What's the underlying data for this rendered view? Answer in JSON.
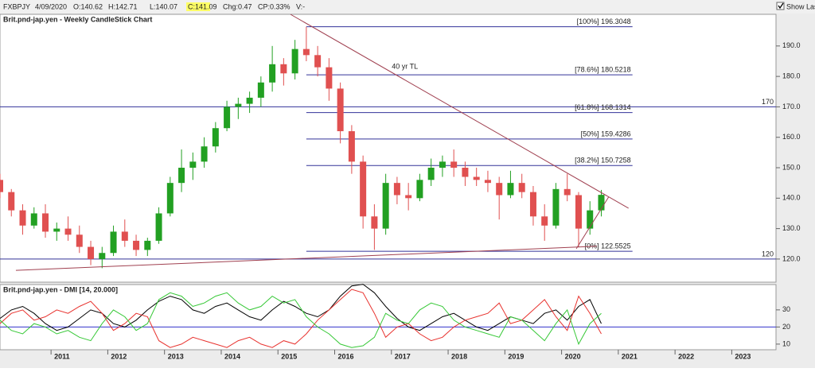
{
  "toolbar": {
    "symbol": "FXBPJY",
    "date": "4/09/2020",
    "open": "O:140.62",
    "high": "H:142.71",
    "low": "L:140.07",
    "close": "C:141.09",
    "change": "Chg:0.47",
    "change_pct": "CP:0.33%",
    "volume": "V:-",
    "show_last": "Show Last"
  },
  "chart_data": [
    {
      "type": "candlestick",
      "title": "Brit.pnd-jap.yen - Weekly CandleStick Chart",
      "x": [
        2010.1,
        2010.3,
        2010.5,
        2010.7,
        2010.9,
        2011.1,
        2011.3,
        2011.5,
        2011.7,
        2011.9,
        2012.1,
        2012.3,
        2012.5,
        2012.7,
        2012.9,
        2013.1,
        2013.3,
        2013.5,
        2013.7,
        2013.9,
        2014.1,
        2014.3,
        2014.5,
        2014.7,
        2014.9,
        2015.1,
        2015.3,
        2015.5,
        2015.7,
        2015.9,
        2016.1,
        2016.3,
        2016.5,
        2016.7,
        2016.9,
        2017.1,
        2017.3,
        2017.5,
        2017.7,
        2017.9,
        2018.1,
        2018.3,
        2018.5,
        2018.7,
        2018.9,
        2019.1,
        2019.3,
        2019.5,
        2019.7,
        2019.9,
        2020.1,
        2020.3,
        2020.5,
        2020.7
      ],
      "open": [
        146,
        142,
        136,
        131,
        135,
        129,
        130,
        128,
        124,
        120,
        122,
        129,
        126,
        123,
        126,
        135,
        145,
        150,
        152,
        157,
        163,
        170,
        171,
        173,
        178,
        184,
        181,
        189,
        187,
        183,
        176,
        162,
        152,
        134,
        130,
        145,
        141,
        140,
        146,
        150,
        152,
        150,
        147,
        146,
        145,
        141,
        145,
        142,
        134,
        131,
        143,
        141,
        130,
        136
      ],
      "high": [
        148,
        143,
        138,
        137,
        138,
        132,
        134,
        131,
        126,
        124,
        131,
        133,
        128,
        127,
        137,
        147,
        156,
        155,
        160,
        165,
        172,
        173,
        175,
        180,
        190,
        186,
        192,
        196.3,
        190,
        186,
        178,
        164,
        154,
        138,
        148,
        147,
        145,
        148,
        153,
        154,
        156,
        152,
        150,
        149,
        147,
        149,
        148,
        144,
        138,
        145,
        148,
        142,
        139,
        142.71
      ],
      "low": [
        140,
        134,
        128,
        130,
        127,
        126,
        126,
        122,
        118,
        117,
        121,
        124,
        121,
        121,
        125,
        134,
        142,
        146,
        150,
        155,
        162,
        166,
        168,
        170,
        175,
        177,
        179,
        185,
        180,
        172,
        158,
        148,
        130,
        123,
        128,
        138,
        136,
        139,
        144,
        147,
        147,
        144,
        144,
        142,
        133,
        140,
        140,
        131,
        126,
        130,
        139,
        124,
        128,
        134
      ],
      "close": [
        142,
        136,
        131,
        135,
        129,
        130,
        128,
        124,
        120,
        122,
        129,
        126,
        123,
        126,
        135,
        145,
        150,
        152,
        157,
        163,
        170,
        171,
        173,
        178,
        184,
        181,
        189,
        187,
        183,
        176,
        162,
        152,
        134,
        130,
        145,
        141,
        140,
        146,
        150,
        152,
        150,
        147,
        146,
        145,
        141,
        145,
        142,
        134,
        131,
        143,
        141,
        130,
        136,
        141.09
      ],
      "up_color": "#22a022",
      "down_color": "#e05050",
      "xlim": [
        2010.1,
        2023.78
      ],
      "ylim": [
        112.4,
        200.4
      ],
      "yticks": [
        {
          "value": 120,
          "label": "120.0"
        },
        {
          "value": 130,
          "label": "130.0"
        },
        {
          "value": 140,
          "label": "140.0"
        },
        {
          "value": 150,
          "label": "150.0"
        },
        {
          "value": 160,
          "label": "160.0"
        },
        {
          "value": 170,
          "label": "170.0"
        },
        {
          "value": 180,
          "label": "180.0"
        },
        {
          "value": 190,
          "label": "190.0"
        }
      ],
      "hlines": [
        170,
        120
      ],
      "hline_color": "#333399",
      "fib_levels": [
        {
          "value": 196.3048,
          "label": "[100%] 196.3048"
        },
        {
          "value": 180.5218,
          "label": "[78.6%] 180.5218"
        },
        {
          "value": 168.1314,
          "label": "[61.8%] 168.1314"
        },
        {
          "value": 159.4286,
          "label": "[50%] 159.4286"
        },
        {
          "value": 150.7258,
          "label": "[38.2%] 150.7258"
        },
        {
          "value": 122.5525,
          "label": "[0%] 122.5525"
        }
      ],
      "fib_x": [
        2015.5,
        2021.25
      ],
      "trendlines": [
        {
          "label": "40 yr TL",
          "x": [
            2015.22,
            2021.18
          ],
          "y": [
            200.4,
            136.7
          ]
        },
        {
          "x": [
            2010.38,
            2020.62
          ],
          "y": [
            116.3,
            124.2
          ]
        },
        {
          "x": [
            2020.26,
            2020.83
          ],
          "y": [
            123.4,
            140.4
          ]
        }
      ],
      "trend_color": "#a04050"
    },
    {
      "type": "line",
      "title": "Brit.pnd-jap.yen - DMI [14, 20.000]",
      "x": [
        2010.1,
        2010.3,
        2010.5,
        2010.7,
        2010.9,
        2011.1,
        2011.3,
        2011.5,
        2011.7,
        2011.9,
        2012.1,
        2012.3,
        2012.5,
        2012.7,
        2012.9,
        2013.1,
        2013.3,
        2013.5,
        2013.7,
        2013.9,
        2014.1,
        2014.3,
        2014.5,
        2014.7,
        2014.9,
        2015.1,
        2015.3,
        2015.5,
        2015.7,
        2015.9,
        2016.1,
        2016.3,
        2016.5,
        2016.7,
        2016.9,
        2017.1,
        2017.3,
        2017.5,
        2017.7,
        2017.9,
        2018.1,
        2018.3,
        2018.5,
        2018.7,
        2018.9,
        2019.1,
        2019.3,
        2019.5,
        2019.7,
        2019.9,
        2020.1,
        2020.3,
        2020.5,
        2020.7
      ],
      "series": [
        {
          "color": "#000000",
          "values": [
            25,
            30,
            32,
            28,
            22,
            18,
            20,
            25,
            30,
            28,
            22,
            20,
            24,
            30,
            35,
            38,
            36,
            30,
            28,
            32,
            34,
            30,
            26,
            24,
            30,
            35,
            32,
            28,
            26,
            30,
            38,
            44,
            45,
            40,
            32,
            25,
            20,
            18,
            22,
            26,
            28,
            24,
            20,
            18,
            22,
            26,
            24,
            22,
            28,
            30,
            24,
            32,
            36,
            22
          ]
        },
        {
          "color": "#e8322e",
          "values": [
            22,
            28,
            30,
            24,
            26,
            30,
            28,
            32,
            35,
            28,
            18,
            22,
            28,
            26,
            12,
            8,
            10,
            14,
            12,
            10,
            8,
            12,
            14,
            10,
            8,
            12,
            10,
            16,
            24,
            30,
            36,
            42,
            40,
            28,
            14,
            20,
            22,
            16,
            12,
            14,
            20,
            24,
            26,
            28,
            34,
            22,
            24,
            30,
            36,
            26,
            18,
            38,
            28,
            16
          ]
        },
        {
          "color": "#36c836",
          "values": [
            24,
            18,
            16,
            22,
            20,
            16,
            18,
            14,
            12,
            22,
            30,
            26,
            18,
            22,
            36,
            40,
            38,
            32,
            34,
            38,
            40,
            34,
            30,
            32,
            38,
            34,
            36,
            26,
            20,
            16,
            10,
            8,
            9,
            14,
            28,
            24,
            22,
            30,
            34,
            32,
            24,
            20,
            18,
            16,
            14,
            26,
            24,
            18,
            12,
            22,
            30,
            10,
            22,
            28
          ]
        }
      ],
      "xlim": [
        2010.1,
        2023.78
      ],
      "ylim": [
        6.7,
        44.8
      ],
      "yticks": [
        10,
        20,
        30
      ],
      "hlines": [
        20
      ],
      "hline_color": "#3333cc",
      "xticks": [
        2011,
        2012,
        2013,
        2014,
        2015,
        2016,
        2017,
        2018,
        2019,
        2020,
        2021,
        2022,
        2023
      ]
    }
  ]
}
